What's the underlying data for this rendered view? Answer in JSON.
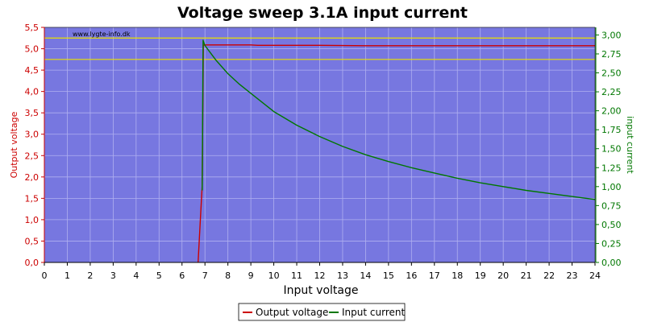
{
  "chart_data": {
    "type": "line",
    "title": "Voltage sweep 3.1A input current",
    "xlabel": "Input voltage",
    "ylabel_left": "Output voltage",
    "ylabel_right": "input current",
    "watermark": "www.lygte-info.dk",
    "xlim": [
      0,
      24
    ],
    "ylim_left": [
      0,
      5.5
    ],
    "ylim_right": [
      0,
      3.1
    ],
    "x_ticks": [
      "0",
      "1",
      "2",
      "3",
      "4",
      "5",
      "6",
      "7",
      "8",
      "9",
      "10",
      "11",
      "12",
      "13",
      "14",
      "15",
      "16",
      "17",
      "18",
      "19",
      "20",
      "21",
      "22",
      "23",
      "24"
    ],
    "y_ticks_left": [
      "0,0",
      "0,5",
      "1,0",
      "1,5",
      "2,0",
      "2,5",
      "3,0",
      "3,5",
      "4,0",
      "4,5",
      "5,0",
      "5,5"
    ],
    "y_ticks_right": [
      "0,00",
      "0,25",
      "0,50",
      "0,75",
      "1,00",
      "1,25",
      "1,50",
      "1,75",
      "2,00",
      "2,25",
      "2,50",
      "2,75",
      "3,00"
    ],
    "reference_lines_left": [
      5.25,
      4.75
    ],
    "grid": true,
    "legend_position": "bottom-center",
    "colors": {
      "plot_bg": "#7777e0",
      "grid": "#b0b0f0",
      "output_voltage": "#cc0000",
      "input_current": "#007700",
      "reference": "#e8e000",
      "left_axis": "#cc0000",
      "right_axis": "#007700"
    },
    "series": [
      {
        "name": "Output voltage",
        "axis": "left",
        "x": [
          6.7,
          6.8,
          6.88,
          6.93,
          7,
          8,
          9,
          9.3,
          10,
          12,
          14,
          16,
          18,
          20,
          22,
          24
        ],
        "y": [
          0,
          1.0,
          1.8,
          5.09,
          5.09,
          5.09,
          5.09,
          5.08,
          5.08,
          5.08,
          5.07,
          5.07,
          5.07,
          5.07,
          5.07,
          5.07
        ]
      },
      {
        "name": "Input current",
        "axis": "right",
        "x": [
          6.88,
          6.92,
          7,
          7.5,
          8,
          8.5,
          9,
          10,
          11,
          12,
          13,
          14,
          15,
          16,
          17,
          18,
          19,
          20,
          21,
          22,
          23,
          24
        ],
        "y": [
          0.95,
          2.93,
          2.86,
          2.66,
          2.49,
          2.35,
          2.23,
          1.99,
          1.81,
          1.66,
          1.53,
          1.42,
          1.33,
          1.25,
          1.18,
          1.11,
          1.05,
          1.0,
          0.95,
          0.91,
          0.87,
          0.83
        ]
      }
    ]
  }
}
